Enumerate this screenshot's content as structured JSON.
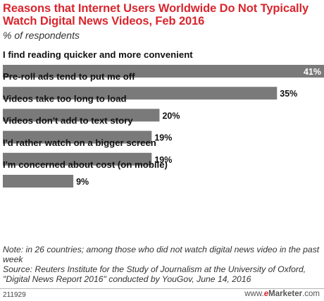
{
  "title": "Reasons that Internet Users Worldwide Do Not Typically Watch Digital News Videos, Feb 2016",
  "subtitle": "% of respondents",
  "chart_data": {
    "type": "bar",
    "orientation": "horizontal",
    "categories": [
      "I find reading quicker and more convenient",
      "Pre-roll ads tend to put me off",
      "Videos take too long to load",
      "Videos don't add to text story",
      "I'd rather watch on a bigger screen",
      "I'm concerned about cost (on mobile)"
    ],
    "values": [
      41,
      35,
      20,
      19,
      19,
      9
    ],
    "value_labels": [
      "41%",
      "35%",
      "20%",
      "19%",
      "19%",
      "9%"
    ],
    "unit": "%",
    "xlim": [
      0,
      41
    ],
    "bar_color": "#7a7a7a",
    "grid": false
  },
  "notes": [
    "Note: in 26 countries; among those who did not watch digital news video in the past week",
    "Source: Reuters Institute for the Study of Journalism at the University of Oxford, \"Digital News Report 2016\" conducted by YouGov, June 14, 2016"
  ],
  "chart_id": "211929",
  "brand": {
    "prefix": "www.",
    "e": "e",
    "main": "Marketer",
    "suffix": ".com"
  }
}
